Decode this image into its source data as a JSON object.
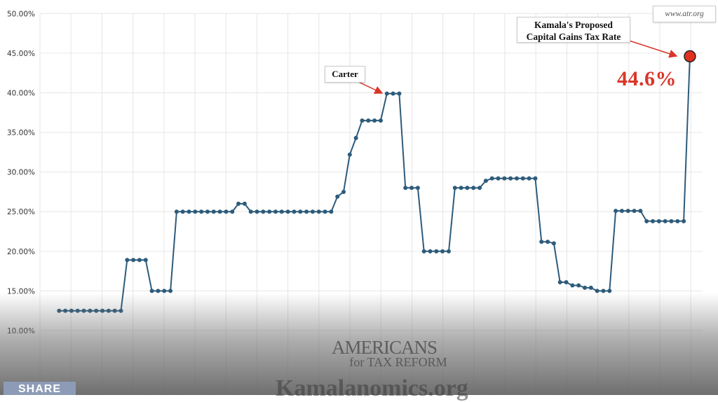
{
  "chart_data": {
    "type": "line",
    "title": "",
    "xlabel": "",
    "ylabel": "",
    "ylim": [
      10,
      50
    ],
    "y_ticks": [
      "50.00%",
      "45.00%",
      "40.00%",
      "35.00%",
      "30.00%",
      "25.00%",
      "20.00%",
      "15.00%",
      "10.00%"
    ],
    "grid": true,
    "series": [
      {
        "color": "#2d5b7b",
        "values": [
          12.5,
          12.5,
          12.5,
          12.5,
          12.5,
          12.5,
          12.5,
          12.5,
          12.5,
          12.5,
          12.5,
          18.9,
          18.9,
          18.9,
          18.9,
          15,
          15,
          15,
          15,
          25,
          25,
          25,
          25,
          25,
          25,
          25,
          25,
          25,
          25,
          26,
          26,
          25,
          25,
          25,
          25,
          25,
          25,
          25,
          25,
          25,
          25,
          25,
          25,
          25,
          25,
          26.9,
          27.5,
          32.2,
          34.3,
          36.5,
          36.5,
          36.5,
          36.5,
          39.9,
          39.9,
          39.9,
          28,
          28,
          28,
          20,
          20,
          20,
          20,
          20,
          28,
          28,
          28,
          28,
          28,
          28.9,
          29.2,
          29.2,
          29.2,
          29.2,
          29.2,
          29.2,
          29.2,
          29.2,
          21.2,
          21.2,
          21.0,
          16.1,
          16.1,
          15.7,
          15.7,
          15.4,
          15.4,
          15,
          15,
          15,
          25.1,
          25.1,
          25.1,
          25.1,
          25.1,
          23.8,
          23.8,
          23.8,
          23.8,
          23.8,
          23.8,
          23.8,
          44.6
        ]
      }
    ],
    "highlight": {
      "value": 44.6,
      "label": "44.6%",
      "color": "#e0301e"
    },
    "annotations": {
      "carter": "Carter",
      "kamala_line1": "Kamala's Proposed",
      "kamala_line2": "Capital Gains Tax Rate",
      "source": "www.atr.org",
      "arrow_color": "#d9362a"
    }
  },
  "watermark": {
    "line1": "AMERICANS",
    "line2": "for TAX REFORM",
    "site": "Kamalanomics.org"
  },
  "share_label": "SHARE"
}
